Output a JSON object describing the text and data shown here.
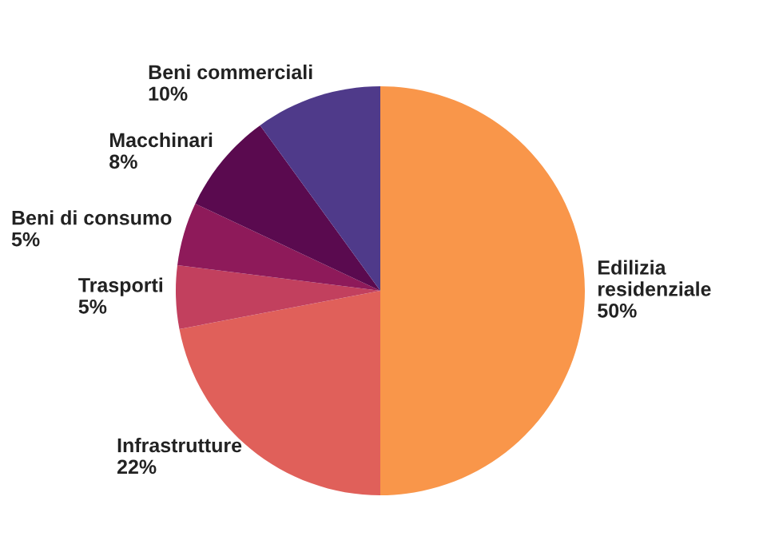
{
  "chart_data": {
    "type": "pie",
    "categories": [
      "Edilizia residenziale",
      "Infrastrutture",
      "Trasporti",
      "Beni di consumo",
      "Macchinari",
      "Beni commerciali"
    ],
    "values": [
      50,
      22,
      5,
      5,
      8,
      10
    ],
    "value_labels": [
      "50%",
      "22%",
      "5%",
      "5%",
      "8%",
      "10%"
    ],
    "colors": [
      "#f9964a",
      "#e0605a",
      "#c2405e",
      "#8e1a5a",
      "#5a0a4f",
      "#4f3a8a"
    ]
  }
}
